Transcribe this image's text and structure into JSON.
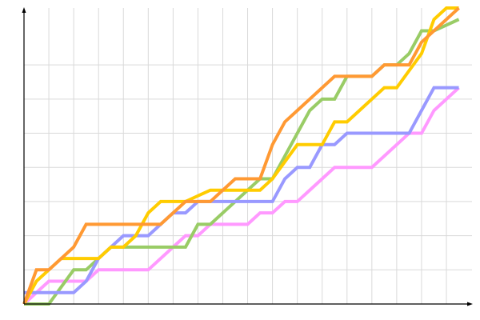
{
  "chart_data": {
    "type": "line",
    "title": "",
    "xlabel": "",
    "ylabel": "",
    "xlim": [
      0,
      36
    ],
    "ylim": [
      0,
      26
    ],
    "x_grid_step": 2,
    "y_grid_step": 3,
    "grid": true,
    "legend": "none",
    "series": [
      {
        "color": "#FF99FF",
        "points": [
          [
            0,
            0
          ],
          [
            1,
            1
          ],
          [
            2,
            2
          ],
          [
            5,
            2
          ],
          [
            6,
            3
          ],
          [
            10,
            3
          ],
          [
            12,
            5
          ],
          [
            13,
            6
          ],
          [
            14,
            6
          ],
          [
            15,
            7
          ],
          [
            18,
            7
          ],
          [
            19,
            8
          ],
          [
            20,
            8
          ],
          [
            21,
            9
          ],
          [
            22,
            9
          ],
          [
            25,
            12
          ],
          [
            28,
            12
          ],
          [
            31,
            15
          ],
          [
            32,
            15
          ],
          [
            33,
            17
          ],
          [
            35,
            19
          ]
        ]
      },
      {
        "color": "#99CC66",
        "points": [
          [
            0,
            0
          ],
          [
            2,
            0
          ],
          [
            4,
            3
          ],
          [
            5,
            3
          ],
          [
            6,
            4
          ],
          [
            7,
            5
          ],
          [
            13,
            5
          ],
          [
            14,
            7
          ],
          [
            15,
            7
          ],
          [
            17,
            9
          ],
          [
            19,
            11
          ],
          [
            20,
            11
          ],
          [
            22,
            15
          ],
          [
            23,
            17
          ],
          [
            24,
            18
          ],
          [
            25,
            18
          ],
          [
            26,
            20
          ],
          [
            28,
            20
          ],
          [
            29,
            21
          ],
          [
            30,
            21
          ],
          [
            31,
            22
          ],
          [
            32,
            24
          ],
          [
            33,
            24
          ],
          [
            35,
            25
          ]
        ]
      },
      {
        "color": "#9999FF",
        "points": [
          [
            0,
            1
          ],
          [
            4,
            1
          ],
          [
            5,
            2
          ],
          [
            6,
            4
          ],
          [
            8,
            6
          ],
          [
            10,
            6
          ],
          [
            11,
            7
          ],
          [
            12,
            8
          ],
          [
            13,
            8
          ],
          [
            14,
            9
          ],
          [
            20,
            9
          ],
          [
            21,
            11
          ],
          [
            22,
            12
          ],
          [
            23,
            12
          ],
          [
            24,
            14
          ],
          [
            25,
            14
          ],
          [
            26,
            15
          ],
          [
            31,
            15
          ],
          [
            33,
            19
          ],
          [
            35,
            19
          ]
        ]
      },
      {
        "color": "#FFCC00",
        "points": [
          [
            0,
            0
          ],
          [
            1,
            2
          ],
          [
            2,
            3
          ],
          [
            3,
            4
          ],
          [
            6,
            4
          ],
          [
            7,
            5
          ],
          [
            8,
            5
          ],
          [
            9,
            6
          ],
          [
            10,
            8
          ],
          [
            11,
            9
          ],
          [
            13,
            9
          ],
          [
            15,
            10
          ],
          [
            19,
            10
          ],
          [
            20,
            11
          ],
          [
            22,
            14
          ],
          [
            24,
            14
          ],
          [
            25,
            16
          ],
          [
            26,
            16
          ],
          [
            27,
            17
          ],
          [
            29,
            19
          ],
          [
            30,
            19
          ],
          [
            32,
            22
          ],
          [
            33,
            25
          ],
          [
            34,
            26
          ],
          [
            35,
            26
          ]
        ]
      },
      {
        "color": "#FF9933",
        "points": [
          [
            0,
            0
          ],
          [
            1,
            3
          ],
          [
            2,
            3
          ],
          [
            4,
            5
          ],
          [
            5,
            7
          ],
          [
            11,
            7
          ],
          [
            13,
            9
          ],
          [
            15,
            9
          ],
          [
            17,
            11
          ],
          [
            19,
            11
          ],
          [
            20,
            14
          ],
          [
            21,
            16
          ],
          [
            22,
            17
          ],
          [
            25,
            20
          ],
          [
            28,
            20
          ],
          [
            29,
            21
          ],
          [
            31,
            21
          ],
          [
            32,
            23
          ],
          [
            35,
            26
          ]
        ]
      }
    ]
  }
}
